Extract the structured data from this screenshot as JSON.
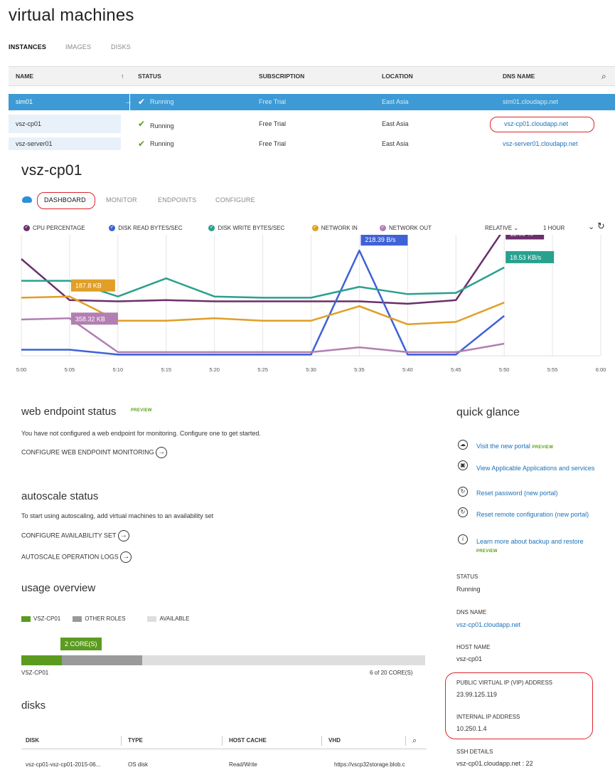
{
  "page_title": "virtual machines",
  "top_tabs": [
    "INSTANCES",
    "IMAGES",
    "DISKS"
  ],
  "vm_table": {
    "headers": [
      "NAME",
      "STATUS",
      "SUBSCRIPTION",
      "LOCATION",
      "DNS NAME"
    ],
    "rows": [
      {
        "name": "sim01",
        "status": "Running",
        "subscription": "Free Trial",
        "location": "East Asia",
        "dns": "sim01.cloudapp.net"
      },
      {
        "name": "vsz-cp01",
        "status": "Running",
        "subscription": "Free Trial",
        "location": "East Asia",
        "dns": "vsz-cp01.cloudapp.net"
      },
      {
        "name": "vsz-server01",
        "status": "Running",
        "subscription": "Free Trial",
        "location": "East Asia",
        "dns": "vsz-server01.cloudapp.net"
      }
    ]
  },
  "vm_title": "vsz-cp01",
  "vm_tabs": [
    "DASHBOARD",
    "MONITOR",
    "ENDPOINTS",
    "CONFIGURE"
  ],
  "chart_controls": {
    "relative": "RELATIVE",
    "range": "1 HOUR"
  },
  "chart_data": {
    "type": "line",
    "x": [
      "5:00",
      "5:05",
      "5:10",
      "5:15",
      "5:20",
      "5:25",
      "5:30",
      "5:35",
      "5:40",
      "5:45",
      "5:50",
      "5:55",
      "6:00"
    ],
    "series": [
      {
        "name": "CPU PERCENTAGE",
        "color": "#6b2f6b",
        "values": [
          0.8,
          0.46,
          0.45,
          0.46,
          0.45,
          0.45,
          0.45,
          0.45,
          0.43,
          0.46,
          1.05,
          null,
          null
        ]
      },
      {
        "name": "DISK READ BYTES/SEC",
        "color": "#3f62d6",
        "values": [
          0.05,
          0.05,
          0.01,
          0.01,
          0.01,
          0.01,
          0.01,
          0.87,
          0.01,
          0.01,
          0.33,
          null,
          null
        ]
      },
      {
        "name": "DISK WRITE BYTES/SEC",
        "color": "#2aa08f",
        "values": [
          0.62,
          0.62,
          0.49,
          0.64,
          0.49,
          0.48,
          0.48,
          0.57,
          0.51,
          0.52,
          0.73,
          null,
          null
        ]
      },
      {
        "name": "NETWORK IN",
        "color": "#e09f27",
        "values": [
          0.48,
          0.49,
          0.29,
          0.29,
          0.31,
          0.29,
          0.29,
          0.41,
          0.26,
          0.28,
          0.44,
          null,
          null
        ]
      },
      {
        "name": "NETWORK OUT",
        "color": "#b27fb2",
        "values": [
          0.3,
          0.31,
          0.03,
          0.03,
          0.03,
          0.03,
          0.03,
          0.07,
          0.03,
          0.03,
          0.1,
          null,
          null
        ]
      }
    ],
    "annotations": [
      {
        "text": "187.8 KB",
        "series": "NETWORK IN",
        "color": "#e09f27"
      },
      {
        "text": "358.32 KB",
        "series": "NETWORK OUT",
        "color": "#b27fb2"
      },
      {
        "text": "218.39 B/s",
        "series": "DISK READ BYTES/SEC",
        "color": "#3f62d6"
      },
      {
        "text": "11.03 %",
        "series": "CPU PERCENTAGE",
        "color": "#6b2f6b"
      },
      {
        "text": "18.53 KB/s",
        "series": "DISK WRITE BYTES/SEC",
        "color": "#2aa08f"
      }
    ]
  },
  "web_endpoint": {
    "title": "web endpoint status",
    "badge": "PREVIEW",
    "text": "You have not configured a web endpoint for monitoring. Configure one to get started.",
    "action": "CONFIGURE WEB ENDPOINT MONITORING"
  },
  "autoscale": {
    "title": "autoscale status",
    "text": "To start using autoscaling, add virtual machines to an availability set",
    "action1": "CONFIGURE AVAILABILITY SET",
    "action2": "AUTOSCALE OPERATION LOGS"
  },
  "usage": {
    "title": "usage overview",
    "legend": [
      "VSZ-CP01",
      "OTHER ROLES",
      "AVAILABLE"
    ],
    "colors": {
      "vm": "#5b9c20",
      "other": "#9a9a9a",
      "available": "#dedede"
    },
    "badge": "2 CORE(S)",
    "vm_cores": 2,
    "other_cores": 4,
    "total_cores": 20,
    "bar_label": "VSZ-CP01",
    "summary": "6 of 20 CORE(S)"
  },
  "disks": {
    "title": "disks",
    "headers": [
      "DISK",
      "TYPE",
      "HOST CACHE",
      "VHD"
    ],
    "row": {
      "disk": "vsz-cp01-vsz-cp01-2015-06...",
      "type": "OS disk",
      "cache": "Read/Write",
      "vhd": "https://vscp32storage.blob.c"
    }
  },
  "quick_glance": {
    "title": "quick glance",
    "items": [
      {
        "icon": "cloud-icon",
        "text": "Visit the new portal",
        "badge": "PREVIEW"
      },
      {
        "icon": "app-icon",
        "text": "View Applicable Applications and services",
        "badge": ""
      },
      {
        "icon": "reset-icon",
        "text": "Reset password (new portal)",
        "badge": ""
      },
      {
        "icon": "reset-icon",
        "text": "Reset remote configuration (new portal)",
        "badge": ""
      },
      {
        "icon": "info-icon",
        "text": "Learn more about backup and restore",
        "badge": "PREVIEW"
      }
    ],
    "status_label": "STATUS",
    "status_value": "Running",
    "dns_label": "DNS NAME",
    "dns_value": "vsz-cp01.cloudapp.net",
    "host_label": "HOST NAME",
    "host_value": "vsz-cp01",
    "vip_label": "PUBLIC VIRTUAL IP (VIP) ADDRESS",
    "vip_value": "23.99.125.119",
    "internal_label": "INTERNAL IP ADDRESS",
    "internal_value": "10.250.1.4",
    "ssh_label": "SSH DETAILS",
    "ssh_value": "vsz-cp01.cloudapp.net : 22"
  }
}
